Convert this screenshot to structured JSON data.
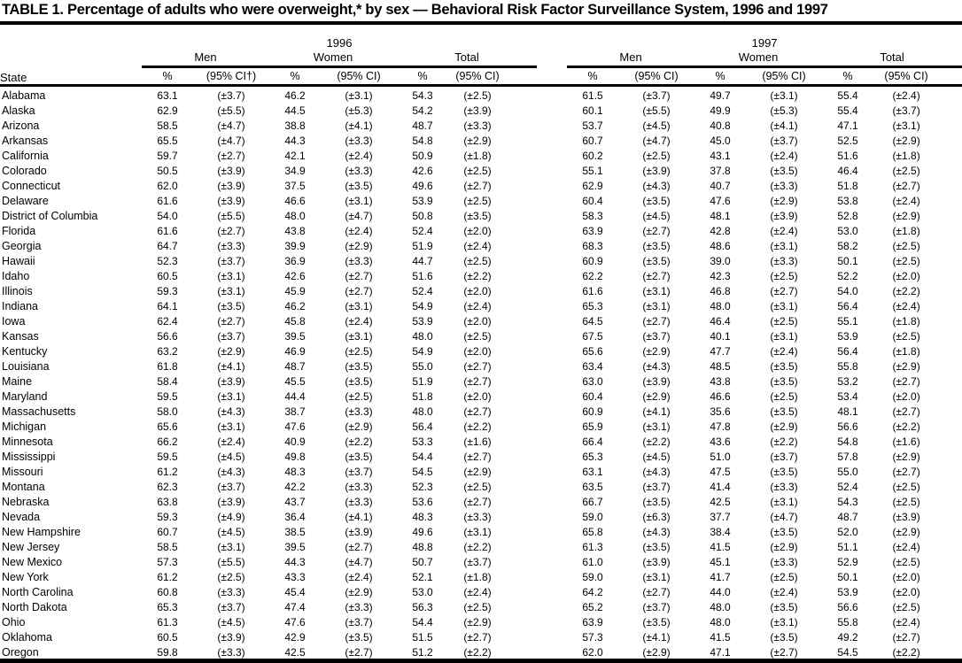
{
  "title": "TABLE 1. Percentage of adults who were overweight,* by sex — Behavioral Risk Factor Surveillance System, 1996 and 1997",
  "table": {
    "state_header": "State",
    "years": [
      "1996",
      "1997"
    ],
    "group_headers": [
      "Men",
      "Women",
      "Total",
      "Men",
      "Women",
      "Total"
    ],
    "sub_headers": [
      "%",
      "(95% CI†)",
      "%",
      "(95% CI)",
      "%",
      "(95% CI)",
      "%",
      "(95% CI)",
      "%",
      "(95% CI)",
      "%",
      "(95% CI)"
    ],
    "rows": [
      {
        "state": "Alabama",
        "values": [
          "63.1",
          "(±3.7)",
          "46.2",
          "(±3.1)",
          "54.3",
          "(±2.5)",
          "61.5",
          "(±3.7)",
          "49.7",
          "(±3.1)",
          "55.4",
          "(±2.4)"
        ]
      },
      {
        "state": "Alaska",
        "values": [
          "62.9",
          "(±5.5)",
          "44.5",
          "(±5.3)",
          "54.2",
          "(±3.9)",
          "60.1",
          "(±5.5)",
          "49.9",
          "(±5.3)",
          "55.4",
          "(±3.7)"
        ]
      },
      {
        "state": "Arizona",
        "values": [
          "58.5",
          "(±4.7)",
          "38.8",
          "(±4.1)",
          "48.7",
          "(±3.3)",
          "53.7",
          "(±4.5)",
          "40.8",
          "(±4.1)",
          "47.1",
          "(±3.1)"
        ]
      },
      {
        "state": "Arkansas",
        "values": [
          "65.5",
          "(±4.7)",
          "44.3",
          "(±3.3)",
          "54.8",
          "(±2.9)",
          "60.7",
          "(±4.7)",
          "45.0",
          "(±3.7)",
          "52.5",
          "(±2.9)"
        ]
      },
      {
        "state": "California",
        "values": [
          "59.7",
          "(±2.7)",
          "42.1",
          "(±2.4)",
          "50.9",
          "(±1.8)",
          "60.2",
          "(±2.5)",
          "43.1",
          "(±2.4)",
          "51.6",
          "(±1.8)"
        ]
      },
      {
        "state": "Colorado",
        "values": [
          "50.5",
          "(±3.9)",
          "34.9",
          "(±3.3)",
          "42.6",
          "(±2.5)",
          "55.1",
          "(±3.9)",
          "37.8",
          "(±3.5)",
          "46.4",
          "(±2.5)"
        ]
      },
      {
        "state": "Connecticut",
        "values": [
          "62.0",
          "(±3.9)",
          "37.5",
          "(±3.5)",
          "49.6",
          "(±2.7)",
          "62.9",
          "(±4.3)",
          "40.7",
          "(±3.3)",
          "51.8",
          "(±2.7)"
        ]
      },
      {
        "state": "Delaware",
        "values": [
          "61.6",
          "(±3.9)",
          "46.6",
          "(±3.1)",
          "53.9",
          "(±2.5)",
          "60.4",
          "(±3.5)",
          "47.6",
          "(±2.9)",
          "53.8",
          "(±2.4)"
        ]
      },
      {
        "state": "District of Columbia",
        "values": [
          "54.0",
          "(±5.5)",
          "48.0",
          "(±4.7)",
          "50.8",
          "(±3.5)",
          "58.3",
          "(±4.5)",
          "48.1",
          "(±3.9)",
          "52.8",
          "(±2.9)"
        ]
      },
      {
        "state": "Florida",
        "values": [
          "61.6",
          "(±2.7)",
          "43.8",
          "(±2.4)",
          "52.4",
          "(±2.0)",
          "63.9",
          "(±2.7)",
          "42.8",
          "(±2.4)",
          "53.0",
          "(±1.8)"
        ]
      },
      {
        "state": "Georgia",
        "values": [
          "64.7",
          "(±3.3)",
          "39.9",
          "(±2.9)",
          "51.9",
          "(±2.4)",
          "68.3",
          "(±3.5)",
          "48.6",
          "(±3.1)",
          "58.2",
          "(±2.5)"
        ]
      },
      {
        "state": "Hawaii",
        "values": [
          "52.3",
          "(±3.7)",
          "36.9",
          "(±3.3)",
          "44.7",
          "(±2.5)",
          "60.9",
          "(±3.5)",
          "39.0",
          "(±3.3)",
          "50.1",
          "(±2.5)"
        ]
      },
      {
        "state": "Idaho",
        "values": [
          "60.5",
          "(±3.1)",
          "42.6",
          "(±2.7)",
          "51.6",
          "(±2.2)",
          "62.2",
          "(±2.7)",
          "42.3",
          "(±2.5)",
          "52.2",
          "(±2.0)"
        ]
      },
      {
        "state": "Illinois",
        "values": [
          "59.3",
          "(±3.1)",
          "45.9",
          "(±2.7)",
          "52.4",
          "(±2.0)",
          "61.6",
          "(±3.1)",
          "46.8",
          "(±2.7)",
          "54.0",
          "(±2.2)"
        ]
      },
      {
        "state": "Indiana",
        "values": [
          "64.1",
          "(±3.5)",
          "46.2",
          "(±3.1)",
          "54.9",
          "(±2.4)",
          "65.3",
          "(±3.1)",
          "48.0",
          "(±3.1)",
          "56.4",
          "(±2.4)"
        ]
      },
      {
        "state": "Iowa",
        "values": [
          "62.4",
          "(±2.7)",
          "45.8",
          "(±2.4)",
          "53.9",
          "(±2.0)",
          "64.5",
          "(±2.7)",
          "46.4",
          "(±2.5)",
          "55.1",
          "(±1.8)"
        ]
      },
      {
        "state": "Kansas",
        "values": [
          "56.6",
          "(±3.7)",
          "39.5",
          "(±3.1)",
          "48.0",
          "(±2.5)",
          "67.5",
          "(±3.7)",
          "40.1",
          "(±3.1)",
          "53.9",
          "(±2.5)"
        ]
      },
      {
        "state": "Kentucky",
        "values": [
          "63.2",
          "(±2.9)",
          "46.9",
          "(±2.5)",
          "54.9",
          "(±2.0)",
          "65.6",
          "(±2.9)",
          "47.7",
          "(±2.4)",
          "56.4",
          "(±1.8)"
        ]
      },
      {
        "state": "Louisiana",
        "values": [
          "61.8",
          "(±4.1)",
          "48.7",
          "(±3.5)",
          "55.0",
          "(±2.7)",
          "63.4",
          "(±4.3)",
          "48.5",
          "(±3.5)",
          "55.8",
          "(±2.9)"
        ]
      },
      {
        "state": "Maine",
        "values": [
          "58.4",
          "(±3.9)",
          "45.5",
          "(±3.5)",
          "51.9",
          "(±2.7)",
          "63.0",
          "(±3.9)",
          "43.8",
          "(±3.5)",
          "53.2",
          "(±2.7)"
        ]
      },
      {
        "state": "Maryland",
        "values": [
          "59.5",
          "(±3.1)",
          "44.4",
          "(±2.5)",
          "51.8",
          "(±2.0)",
          "60.4",
          "(±2.9)",
          "46.6",
          "(±2.5)",
          "53.4",
          "(±2.0)"
        ]
      },
      {
        "state": "Massachusetts",
        "values": [
          "58.0",
          "(±4.3)",
          "38.7",
          "(±3.3)",
          "48.0",
          "(±2.7)",
          "60.9",
          "(±4.1)",
          "35.6",
          "(±3.5)",
          "48.1",
          "(±2.7)"
        ]
      },
      {
        "state": "Michigan",
        "values": [
          "65.6",
          "(±3.1)",
          "47.6",
          "(±2.9)",
          "56.4",
          "(±2.2)",
          "65.9",
          "(±3.1)",
          "47.8",
          "(±2.9)",
          "56.6",
          "(±2.2)"
        ]
      },
      {
        "state": "Minnesota",
        "values": [
          "66.2",
          "(±2.4)",
          "40.9",
          "(±2.2)",
          "53.3",
          "(±1.6)",
          "66.4",
          "(±2.2)",
          "43.6",
          "(±2.2)",
          "54.8",
          "(±1.6)"
        ]
      },
      {
        "state": "Mississippi",
        "values": [
          "59.5",
          "(±4.5)",
          "49.8",
          "(±3.5)",
          "54.4",
          "(±2.7)",
          "65.3",
          "(±4.5)",
          "51.0",
          "(±3.7)",
          "57.8",
          "(±2.9)"
        ]
      },
      {
        "state": "Missouri",
        "values": [
          "61.2",
          "(±4.3)",
          "48.3",
          "(±3.7)",
          "54.5",
          "(±2.9)",
          "63.1",
          "(±4.3)",
          "47.5",
          "(±3.5)",
          "55.0",
          "(±2.7)"
        ]
      },
      {
        "state": "Montana",
        "values": [
          "62.3",
          "(±3.7)",
          "42.2",
          "(±3.3)",
          "52.3",
          "(±2.5)",
          "63.5",
          "(±3.7)",
          "41.4",
          "(±3.3)",
          "52.4",
          "(±2.5)"
        ]
      },
      {
        "state": "Nebraska",
        "values": [
          "63.8",
          "(±3.9)",
          "43.7",
          "(±3.3)",
          "53.6",
          "(±2.7)",
          "66.7",
          "(±3.5)",
          "42.5",
          "(±3.1)",
          "54.3",
          "(±2.5)"
        ]
      },
      {
        "state": "Nevada",
        "values": [
          "59.3",
          "(±4.9)",
          "36.4",
          "(±4.1)",
          "48.3",
          "(±3.3)",
          "59.0",
          "(±6.3)",
          "37.7",
          "(±4.7)",
          "48.7",
          "(±3.9)"
        ]
      },
      {
        "state": "New Hampshire",
        "values": [
          "60.7",
          "(±4.5)",
          "38.5",
          "(±3.9)",
          "49.6",
          "(±3.1)",
          "65.8",
          "(±4.3)",
          "38.4",
          "(±3.5)",
          "52.0",
          "(±2.9)"
        ]
      },
      {
        "state": "New Jersey",
        "values": [
          "58.5",
          "(±3.1)",
          "39.5",
          "(±2.7)",
          "48.8",
          "(±2.2)",
          "61.3",
          "(±3.5)",
          "41.5",
          "(±2.9)",
          "51.1",
          "(±2.4)"
        ]
      },
      {
        "state": "New Mexico",
        "values": [
          "57.3",
          "(±5.5)",
          "44.3",
          "(±4.7)",
          "50.7",
          "(±3.7)",
          "61.0",
          "(±3.9)",
          "45.1",
          "(±3.3)",
          "52.9",
          "(±2.5)"
        ]
      },
      {
        "state": "New York",
        "values": [
          "61.2",
          "(±2.5)",
          "43.3",
          "(±2.4)",
          "52.1",
          "(±1.8)",
          "59.0",
          "(±3.1)",
          "41.7",
          "(±2.5)",
          "50.1",
          "(±2.0)"
        ]
      },
      {
        "state": "North Carolina",
        "values": [
          "60.8",
          "(±3.3)",
          "45.4",
          "(±2.9)",
          "53.0",
          "(±2.4)",
          "64.2",
          "(±2.7)",
          "44.0",
          "(±2.4)",
          "53.9",
          "(±2.0)"
        ]
      },
      {
        "state": "North Dakota",
        "values": [
          "65.3",
          "(±3.7)",
          "47.4",
          "(±3.3)",
          "56.3",
          "(±2.5)",
          "65.2",
          "(±3.7)",
          "48.0",
          "(±3.5)",
          "56.6",
          "(±2.5)"
        ]
      },
      {
        "state": "Ohio",
        "values": [
          "61.3",
          "(±4.5)",
          "47.6",
          "(±3.7)",
          "54.4",
          "(±2.9)",
          "63.9",
          "(±3.5)",
          "48.0",
          "(±3.1)",
          "55.8",
          "(±2.4)"
        ]
      },
      {
        "state": "Oklahoma",
        "values": [
          "60.5",
          "(±3.9)",
          "42.9",
          "(±3.5)",
          "51.5",
          "(±2.7)",
          "57.3",
          "(±4.1)",
          "41.5",
          "(±3.5)",
          "49.2",
          "(±2.7)"
        ]
      },
      {
        "state": "Oregon",
        "values": [
          "59.8",
          "(±3.3)",
          "42.5",
          "(±2.7)",
          "51.2",
          "(±2.2)",
          "62.0",
          "(±2.9)",
          "47.1",
          "(±2.7)",
          "54.5",
          "(±2.2)"
        ]
      }
    ]
  }
}
